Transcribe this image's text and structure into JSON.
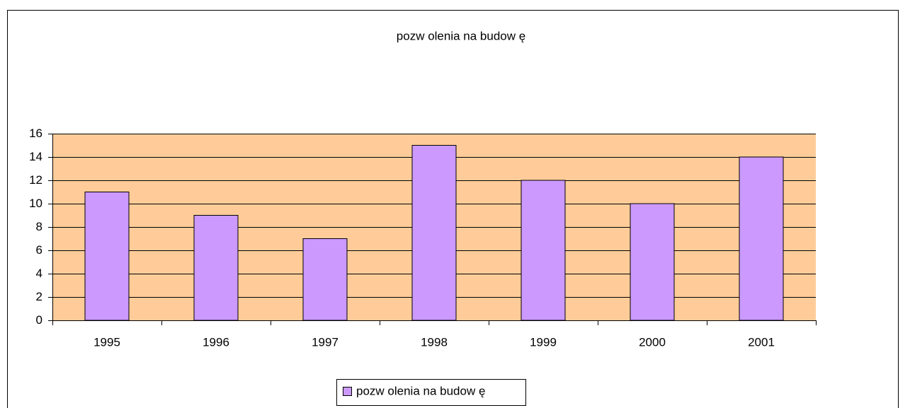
{
  "chart_data": {
    "type": "bar",
    "title": "pozw olenia na budow ę",
    "categories": [
      "1995",
      "1996",
      "1997",
      "1998",
      "1999",
      "2000",
      "2001"
    ],
    "series": [
      {
        "name": "pozw olenia na budow ę",
        "color": "#cc99ff",
        "values": [
          11,
          9,
          7,
          15,
          12,
          10,
          14
        ]
      }
    ],
    "ylim": [
      0,
      16
    ],
    "yticks": [
      0,
      2,
      4,
      6,
      8,
      10,
      12,
      14,
      16
    ],
    "grid": true,
    "plot_background": "#ffcc99",
    "legend": "bottom"
  }
}
